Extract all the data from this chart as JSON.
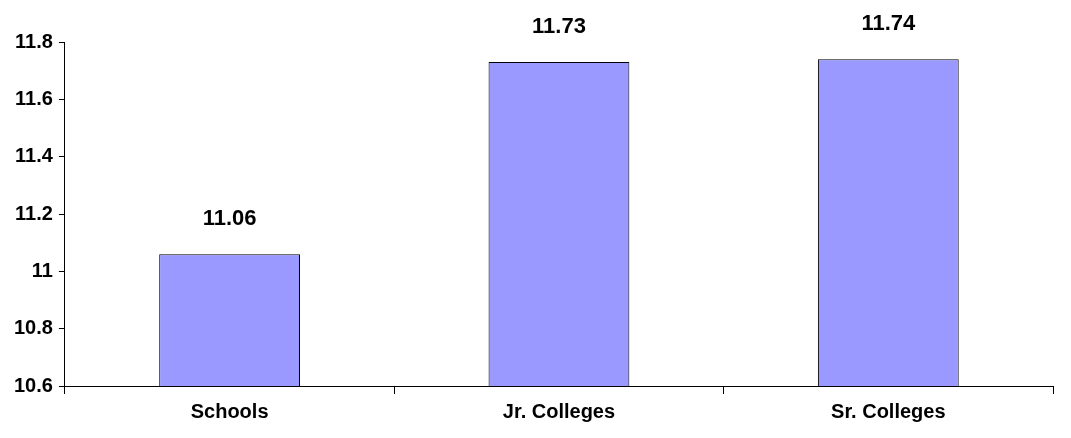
{
  "chart_data": {
    "type": "bar",
    "categories": [
      "Schools",
      "Jr. Colleges",
      "Sr. Colleges"
    ],
    "values": [
      11.06,
      11.73,
      11.74
    ],
    "color": "#9999ff",
    "ylim": [
      10.6,
      11.8
    ],
    "yticks": [
      10.6,
      10.8,
      11,
      11.2,
      11.4,
      11.6,
      11.8
    ],
    "data_labels": true
  }
}
